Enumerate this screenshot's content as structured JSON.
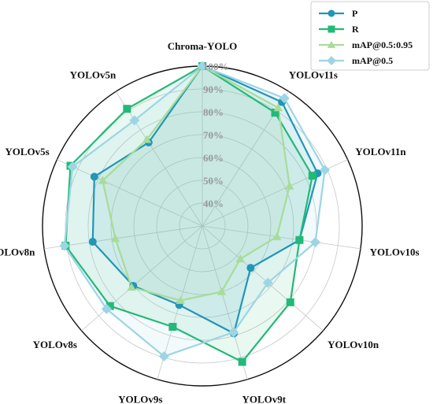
{
  "chart_data": {
    "type": "radar",
    "categories": [
      "Chroma-YOLO",
      "YOLOv11s",
      "YOLOv11n",
      "YOLOv10s",
      "YOLOv10n",
      "YOLOv9t",
      "YOLOv9s",
      "YOLOv8s",
      "YOLOv8n",
      "YOLOv5s",
      "YOLOv5n"
    ],
    "rlim": [
      30,
      100
    ],
    "ticks": [
      40,
      50,
      60,
      70,
      80,
      90,
      100
    ],
    "tick_labels": [
      "40%",
      "50%",
      "60%",
      "70%",
      "80%",
      "90%",
      "100%"
    ],
    "grid": true,
    "legend_position": "top-right",
    "series": [
      {
        "name": "P",
        "marker": "circle",
        "color": "#2196b7",
        "values": [
          100,
          94.5,
          85.5,
          73,
          58,
          79,
          66,
          70,
          78.5,
          82,
          73.5
        ]
      },
      {
        "name": "R",
        "marker": "square",
        "color": "#23b978",
        "values": [
          100,
          89,
          83,
          73,
          81,
          92,
          76,
          83.5,
          90.5,
          93.5,
          91
        ]
      },
      {
        "name": "mAP@0.5:0.95",
        "marker": "triangle",
        "color": "#a8dc98",
        "values": [
          100,
          91.5,
          72,
          63,
          52,
          60,
          64,
          71,
          68.5,
          78,
          75
        ]
      },
      {
        "name": "mAP@0.5",
        "marker": "diamond",
        "color": "#9dd5e4",
        "values": [
          100,
          96.5,
          89,
          80,
          68,
          78.5,
          89.5,
          85.5,
          91,
          92.5,
          85
        ]
      }
    ]
  }
}
